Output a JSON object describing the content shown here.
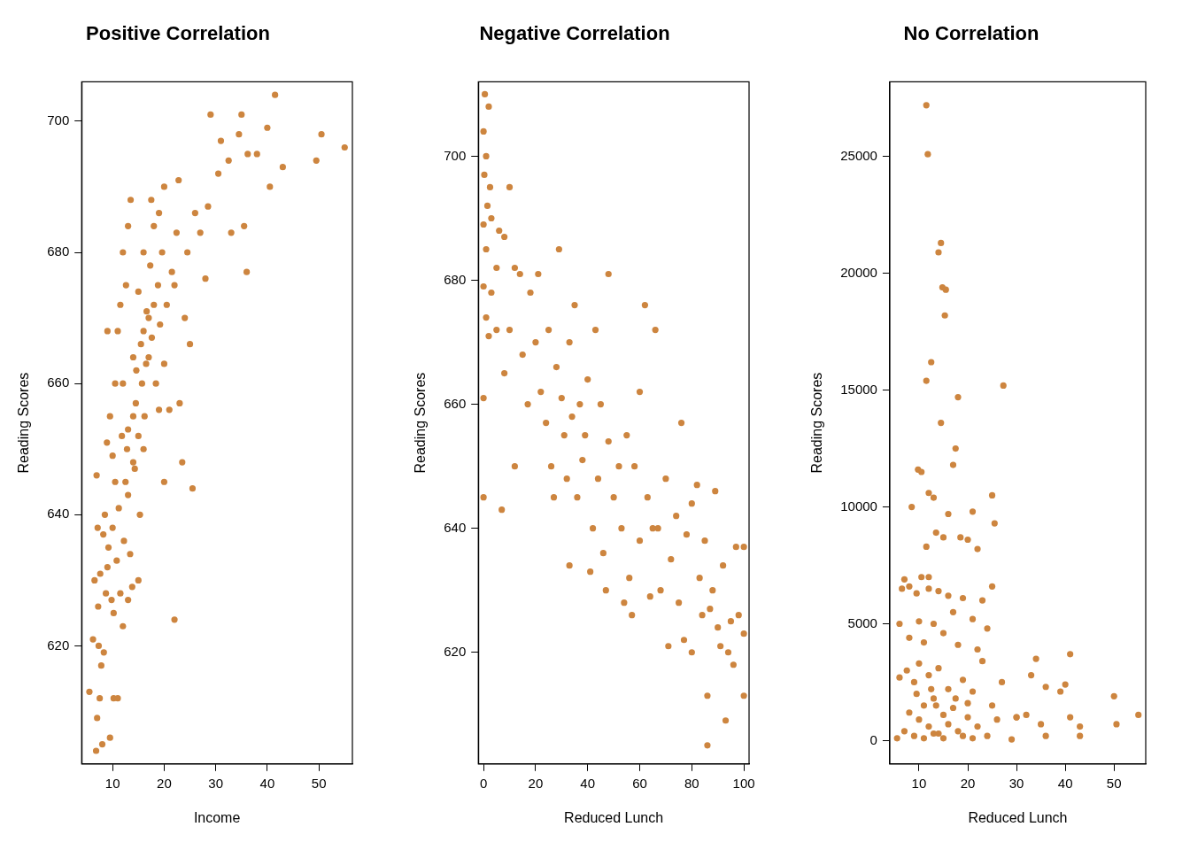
{
  "chart_data": [
    {
      "type": "scatter",
      "title": "Positive Correlation",
      "x_label": "Income",
      "y_label": "Reading Scores",
      "color": "#cd853f",
      "marker": "circle",
      "grid": false,
      "xlim": [
        4,
        56.5
      ],
      "xticks": [
        10,
        20,
        30,
        40,
        50
      ],
      "ylim": [
        602,
        706
      ],
      "yticks": [
        620,
        640,
        660,
        680,
        700
      ],
      "x": [
        5.5,
        6.2,
        6.8,
        7,
        7.3,
        7.5,
        8,
        6.5,
        7.2,
        7.8,
        8.3,
        8.7,
        9,
        9.5,
        10.2,
        11,
        6.9,
        7.1,
        7.6,
        8.2,
        8.5,
        8.9,
        9.2,
        9.8,
        10,
        10.5,
        10.8,
        11.2,
        11.5,
        12,
        12.2,
        12.8,
        13,
        13.4,
        13.8,
        14,
        14.3,
        14.6,
        15,
        15.3,
        15.7,
        16,
        16.2,
        16.6,
        17,
        17.3,
        17.6,
        18,
        18.4,
        18.8,
        19.2,
        19.6,
        20,
        20.5,
        21,
        21.5,
        22,
        22.4,
        22.8,
        23,
        23.5,
        24,
        24.5,
        25,
        25.5,
        26,
        27,
        28,
        28.5,
        29,
        30.5,
        31,
        32.5,
        33,
        34.5,
        35,
        35.5,
        36,
        36.2,
        38,
        40,
        40.5,
        41.5,
        43,
        49.5,
        50.5,
        55,
        10.5,
        11,
        11.5,
        12,
        12.6,
        13,
        13.5,
        14,
        14.5,
        15,
        16,
        17.5,
        18,
        19,
        20,
        9.5,
        10,
        12,
        13,
        14,
        15.5,
        16.5,
        17,
        12.5,
        11.8,
        9,
        10.2,
        16,
        20,
        22,
        19,
        15,
        13
      ],
      "values": [
        613,
        621,
        604,
        609,
        620,
        612,
        605,
        630,
        626,
        617,
        619,
        628,
        632,
        606,
        612,
        612,
        646,
        638,
        631,
        637,
        640,
        651,
        635,
        627,
        638,
        645,
        633,
        641,
        628,
        623,
        636,
        650,
        643,
        634,
        629,
        655,
        647,
        662,
        652,
        640,
        660,
        668,
        655,
        671,
        664,
        678,
        667,
        672,
        660,
        675,
        669,
        680,
        663,
        672,
        656,
        677,
        624,
        683,
        691,
        657,
        648,
        670,
        680,
        666,
        644,
        686,
        683,
        676,
        687,
        701,
        692,
        697,
        694,
        683,
        698,
        701,
        684,
        677,
        695,
        695,
        699,
        690,
        704,
        693,
        694,
        698,
        696,
        660,
        668,
        672,
        680,
        675,
        684,
        688,
        664,
        657,
        674,
        680,
        688,
        684,
        686,
        690,
        655,
        649,
        660,
        653,
        648,
        666,
        663,
        670,
        645,
        652,
        668,
        625,
        650,
        645,
        675,
        656,
        630,
        627
      ]
    },
    {
      "type": "scatter",
      "title": "Negative Correlation",
      "x_label": "Reduced Lunch",
      "y_label": "Reading Scores",
      "color": "#cd853f",
      "marker": "circle",
      "grid": false,
      "xlim": [
        -2,
        102
      ],
      "xticks": [
        0,
        20,
        40,
        60,
        80,
        100
      ],
      "ylim": [
        602,
        712
      ],
      "yticks": [
        620,
        640,
        660,
        680,
        700
      ],
      "x": [
        0.5,
        2,
        0,
        1,
        0.3,
        1.5,
        0,
        2.5,
        3,
        1,
        0,
        1,
        2,
        0,
        0,
        3,
        5,
        6,
        8,
        7,
        10,
        10,
        12,
        14,
        15,
        18,
        20,
        21,
        22,
        24,
        25,
        26,
        28,
        29,
        30,
        31,
        32,
        33,
        34,
        35,
        36,
        37,
        38,
        40,
        42,
        43,
        44,
        45,
        46,
        48,
        48,
        50,
        52,
        53,
        54,
        55,
        56,
        58,
        60,
        60,
        62,
        63,
        64,
        66,
        67,
        68,
        70,
        71,
        72,
        74,
        75,
        76,
        77,
        78,
        80,
        80,
        82,
        83,
        84,
        85,
        86,
        86,
        87,
        88,
        89,
        90,
        91,
        92,
        93,
        94,
        95,
        96,
        97,
        98,
        100,
        100,
        100,
        17,
        27,
        41,
        33,
        39,
        47,
        57,
        65,
        12,
        5,
        8
      ],
      "values": [
        710,
        708,
        704,
        700,
        697,
        692,
        689,
        695,
        690,
        685,
        679,
        674,
        671,
        661,
        645,
        678,
        682,
        688,
        687,
        643,
        695,
        672,
        682,
        681,
        668,
        678,
        670,
        681,
        662,
        657,
        672,
        650,
        666,
        685,
        661,
        655,
        648,
        670,
        658,
        676,
        645,
        660,
        651,
        664,
        640,
        672,
        648,
        660,
        636,
        681,
        654,
        645,
        650,
        640,
        628,
        655,
        632,
        650,
        662,
        638,
        676,
        645,
        629,
        672,
        640,
        630,
        648,
        621,
        635,
        642,
        628,
        657,
        622,
        639,
        644,
        620,
        647,
        632,
        626,
        638,
        613,
        605,
        627,
        630,
        646,
        624,
        621,
        634,
        609,
        620,
        625,
        618,
        637,
        626,
        637,
        623,
        613,
        660,
        645,
        633,
        634,
        655,
        630,
        626,
        640,
        650,
        672,
        665
      ]
    },
    {
      "type": "scatter",
      "title": "No Correlation",
      "x_label": "Reduced Lunch",
      "y_label": "Reading Scores",
      "color": "#cd853f",
      "marker": "circle",
      "grid": false,
      "xlim": [
        4,
        56.5
      ],
      "xticks": [
        10,
        20,
        30,
        40,
        50
      ],
      "ylim": [
        -1000,
        28200
      ],
      "yticks": [
        0,
        5000,
        10000,
        15000,
        20000,
        25000
      ],
      "x": [
        11.5,
        11.8,
        14.5,
        14,
        14.8,
        15.5,
        15.3,
        12.5,
        11.5,
        27.3,
        18,
        14.5,
        17.5,
        17,
        9.8,
        10.5,
        12,
        13,
        25,
        8.5,
        16,
        21,
        25.5,
        13.5,
        15,
        18.5,
        20,
        11.5,
        22,
        7,
        8,
        9.5,
        12,
        14,
        16,
        19,
        23,
        25,
        6,
        10,
        13,
        17,
        21,
        24,
        8,
        11,
        15,
        18,
        22,
        6,
        7.5,
        9,
        10,
        12,
        14,
        16,
        19,
        21,
        23,
        27,
        33,
        34,
        36,
        39,
        40,
        41,
        8,
        10,
        11,
        12,
        13,
        14,
        15,
        16,
        17,
        18,
        20,
        22,
        24,
        26,
        30,
        32,
        35,
        36,
        41,
        43,
        43,
        50,
        50.5,
        55,
        5.5,
        7,
        9,
        11,
        13,
        15,
        19,
        21,
        29,
        9.5,
        12.5,
        13.5,
        17.5,
        20,
        25,
        30,
        6.5,
        10.5,
        12
      ],
      "values": [
        27200,
        25100,
        21300,
        20900,
        19400,
        19300,
        18200,
        16200,
        15400,
        15200,
        14700,
        13600,
        12500,
        11800,
        11600,
        11500,
        10600,
        10400,
        10500,
        10000,
        9700,
        9800,
        9300,
        8900,
        8700,
        8700,
        8600,
        8300,
        8200,
        6900,
        6600,
        6300,
        6500,
        6400,
        6200,
        6100,
        6000,
        6600,
        5000,
        5100,
        5000,
        5500,
        5200,
        4800,
        4400,
        4200,
        4600,
        4100,
        3900,
        2700,
        3000,
        2500,
        3300,
        2800,
        3100,
        2200,
        2600,
        2100,
        3400,
        2500,
        2800,
        3500,
        2300,
        2100,
        2400,
        3700,
        1200,
        900,
        1500,
        600,
        1800,
        300,
        1100,
        700,
        1400,
        400,
        1000,
        600,
        200,
        900,
        1000,
        1100,
        700,
        200,
        1000,
        600,
        200,
        1900,
        700,
        1100,
        100,
        400,
        200,
        100,
        300,
        100,
        200,
        100,
        50,
        2000,
        2200,
        1500,
        1800,
        1600,
        1500,
        1000,
        6500,
        7000,
        7000
      ]
    }
  ]
}
